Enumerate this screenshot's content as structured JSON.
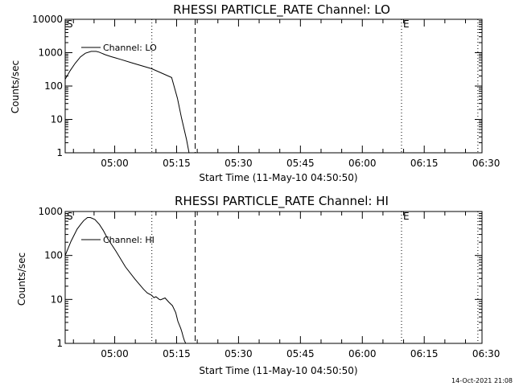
{
  "chart_data": [
    {
      "type": "line",
      "title": "RHESSI PARTICLE_RATE Channel: LO",
      "xlabel": "Start Time (11-May-10 04:50:50)",
      "ylabel": "Counts/sec",
      "yscale": "log",
      "ylim": [
        1,
        10000
      ],
      "ytick_values": [
        1,
        10,
        100,
        1000,
        10000
      ],
      "ytick_labels": [
        "1",
        "10",
        "100",
        "1000",
        "10000"
      ],
      "xlim_minutes": [
        -12,
        89
      ],
      "xtick_values": [
        0,
        15,
        30,
        45,
        60,
        75,
        90
      ],
      "xtick_labels": [
        "05:00",
        "05:15",
        "05:30",
        "05:45",
        "06:00",
        "06:15",
        "06:30"
      ],
      "legend": "Channel: LO",
      "markers": [
        {
          "label": "S",
          "x": -12,
          "style": "none"
        },
        {
          "label": "",
          "x": 9,
          "style": "dotted"
        },
        {
          "label": "",
          "x": 19.5,
          "style": "dashed"
        },
        {
          "label": "E",
          "x": 69.5,
          "style": "dotted"
        },
        {
          "label": "",
          "x": 88,
          "style": "dotted"
        }
      ],
      "series": [
        {
          "name": "Channel: LO",
          "x": [
            -12,
            -10.8,
            -9.6,
            -8.3,
            -7.1,
            -5.7,
            -4.5,
            -3.8,
            -2.3,
            -0.9,
            0.1,
            1.4,
            4.3,
            9,
            13.8,
            15.2,
            16.2,
            17.4,
            17.9,
            18
          ],
          "y": [
            160,
            290,
            475,
            750,
            960,
            1090,
            1090,
            1040,
            870,
            760,
            700,
            630,
            490,
            330,
            180,
            43,
            11,
            2.5,
            1.2,
            1
          ]
        }
      ]
    },
    {
      "type": "line",
      "title": "RHESSI PARTICLE_RATE Channel: HI",
      "xlabel": "Start Time (11-May-10 04:50:50)",
      "ylabel": "Counts/sec",
      "yscale": "log",
      "ylim": [
        1,
        1000
      ],
      "ytick_values": [
        1,
        10,
        100,
        1000
      ],
      "ytick_labels": [
        "1",
        "10",
        "100",
        "1000"
      ],
      "xlim_minutes": [
        -12,
        89
      ],
      "xtick_values": [
        0,
        15,
        30,
        45,
        60,
        75,
        90
      ],
      "xtick_labels": [
        "05:00",
        "05:15",
        "05:30",
        "05:45",
        "06:00",
        "06:15",
        "06:30"
      ],
      "legend": "Channel: HI",
      "markers": [
        {
          "label": "S",
          "x": -12,
          "style": "none"
        },
        {
          "label": "",
          "x": 9,
          "style": "dotted"
        },
        {
          "label": "",
          "x": 19.5,
          "style": "dashed"
        },
        {
          "label": "E",
          "x": 69.5,
          "style": "dotted"
        },
        {
          "label": "",
          "x": 88,
          "style": "dotted"
        }
      ],
      "series": [
        {
          "name": "Channel: HI",
          "x": [
            -12,
            -10.6,
            -9.1,
            -8.1,
            -7.5,
            -6.6,
            -5.9,
            -4.8,
            -3.7,
            -2.8,
            -1.8,
            0.3,
            2.6,
            4.9,
            7,
            7.9,
            8.9,
            9.5,
            10,
            10.8,
            11.1,
            12.2,
            13.1,
            14,
            14.8,
            15.3,
            16,
            16.3,
            16.6,
            16.9,
            17.2
          ],
          "y": [
            100,
            210,
            400,
            530,
            620,
            730,
            730,
            660,
            505,
            375,
            250,
            125,
            55,
            29,
            17,
            14,
            12.5,
            11,
            11.5,
            10,
            9.8,
            10.8,
            8.7,
            7.2,
            5,
            3.2,
            2.2,
            1.8,
            1.4,
            1.15,
            1
          ]
        }
      ]
    }
  ],
  "timestamp": "14-Oct-2021 21:08"
}
